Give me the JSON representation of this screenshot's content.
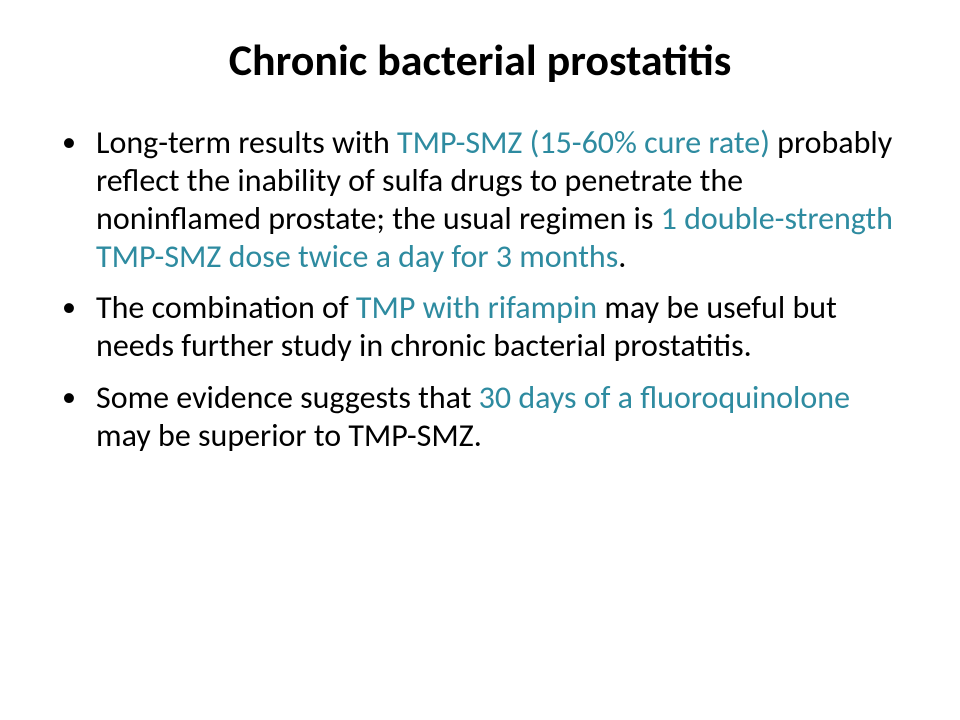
{
  "colors": {
    "background": "#ffffff",
    "text": "#000000",
    "highlight": "#2e8ba0",
    "bullet": "#000000"
  },
  "typography": {
    "title_fontsize": 44,
    "title_weight": 700,
    "body_fontsize": 32,
    "body_weight": 400,
    "font_family": "Calibri"
  },
  "title": "Chronic bacterial prostatitis",
  "bullets": [
    {
      "parts": [
        {
          "t": "Long-term results with ",
          "hl": false
        },
        {
          "t": "TMP-SMZ (15-60% cure rate) ",
          "hl": true
        },
        {
          "t": "probably reflect the inability of sulfa drugs to penetrate the noninflamed prostate; the usual regimen is ",
          "hl": false
        },
        {
          "t": "1 double-strength TMP-SMZ dose twice a day for 3 months",
          "hl": true
        },
        {
          "t": ".",
          "hl": false
        }
      ]
    },
    {
      "parts": [
        {
          "t": "The combination of ",
          "hl": false
        },
        {
          "t": "TMP with rifampin ",
          "hl": true
        },
        {
          "t": "may be useful but needs further study in chronic bacterial prostatitis.",
          "hl": false
        }
      ]
    },
    {
      "parts": [
        {
          "t": "Some evidence suggests that ",
          "hl": false
        },
        {
          "t": "30 days of a fluoroquinolone ",
          "hl": true
        },
        {
          "t": "may be superior to TMP-SMZ.",
          "hl": false
        }
      ]
    }
  ]
}
